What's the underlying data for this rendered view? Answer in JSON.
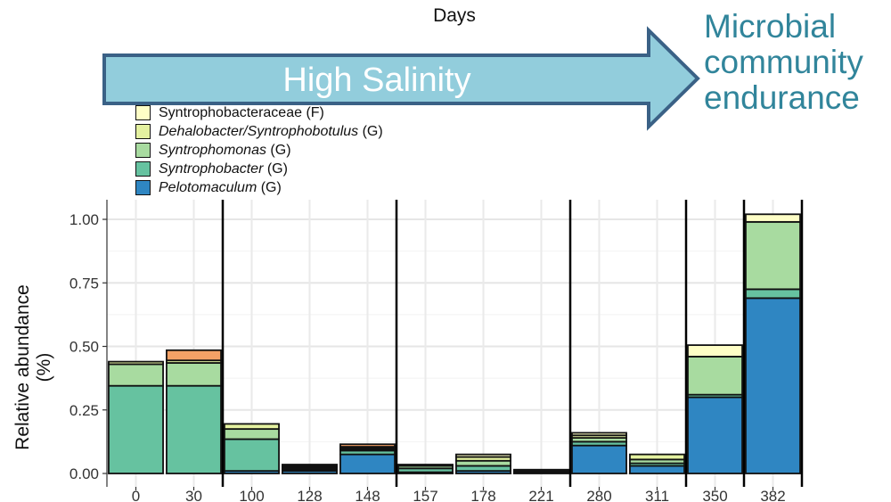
{
  "arrow_label": "High Salinity",
  "annotation": "Microbial community endurance",
  "arrow_fill": "#92cddc",
  "arrow_stroke": "#3a6186",
  "chart_data": {
    "type": "bar",
    "stacked": true,
    "title": "Days",
    "ylabel": "Relative abundance (%)",
    "xlabel": "",
    "categories": [
      "0",
      "30",
      "100",
      "128",
      "148",
      "157",
      "178",
      "221",
      "280",
      "311",
      "350",
      "382"
    ],
    "ylim": [
      0,
      1.05
    ],
    "yticks": [
      0.0,
      0.25,
      0.5,
      0.75,
      1.0
    ],
    "ytick_labels": [
      "0.00",
      "0.25",
      "0.50",
      "0.75",
      "1.00"
    ],
    "grid": true,
    "legend_position": "top-left",
    "phase_dividers_after": [
      "30",
      "148",
      "221",
      "311",
      "350"
    ],
    "legend": [
      {
        "series": "Syntrophobacteraceae",
        "italic": "",
        "plain": "Syntrophobacteraceae (F)"
      },
      {
        "series": "Dehalobacter/Syntrophobotulus",
        "italic": "Dehalobacter/Syntrophobotulus",
        "plain": " (G)"
      },
      {
        "series": "Syntrophomonas",
        "italic": "Syntrophomonas",
        "plain": " (G)"
      },
      {
        "series": "Syntrophobacter",
        "italic": "Syntrophobacter",
        "plain": " (G)"
      },
      {
        "series": "Pelotomaculum",
        "italic": "Pelotomaculum",
        "plain": " (G)"
      }
    ],
    "series": [
      {
        "name": "Pelotomaculum",
        "color": "#2f86c2",
        "values": [
          0.0,
          0.0,
          0.01,
          0.01,
          0.075,
          0.005,
          0.01,
          0.0,
          0.11,
          0.03,
          0.3,
          0.69
        ]
      },
      {
        "name": "Syntrophobacter",
        "color": "#66c2a0",
        "values": [
          0.345,
          0.345,
          0.125,
          0.005,
          0.015,
          0.015,
          0.02,
          0.005,
          0.015,
          0.01,
          0.01,
          0.035
        ]
      },
      {
        "name": "Syntrophomonas",
        "color": "#a8dba0",
        "values": [
          0.085,
          0.09,
          0.04,
          0.005,
          0.005,
          0.01,
          0.02,
          0.005,
          0.015,
          0.015,
          0.15,
          0.265
        ]
      },
      {
        "name": "Dehalobacter/Syntrophobotulus",
        "color": "#e4f1a0",
        "values": [
          0.01,
          0.01,
          0.02,
          0.005,
          0.005,
          0.005,
          0.015,
          0.005,
          0.01,
          0.02,
          0.0,
          0.0
        ]
      },
      {
        "name": "Syntrophobacteraceae",
        "color": "#fefec6",
        "values": [
          0.0,
          0.0,
          0.0,
          0.005,
          0.005,
          0.0,
          0.01,
          0.0,
          0.01,
          0.0,
          0.045,
          0.03
        ]
      },
      {
        "name": "",
        "color": "#f5a166",
        "values": [
          0.0,
          0.04,
          0.0,
          0.005,
          0.01,
          0.0,
          0.0,
          0.0,
          0.0,
          0.0,
          0.0,
          0.0
        ]
      }
    ]
  }
}
